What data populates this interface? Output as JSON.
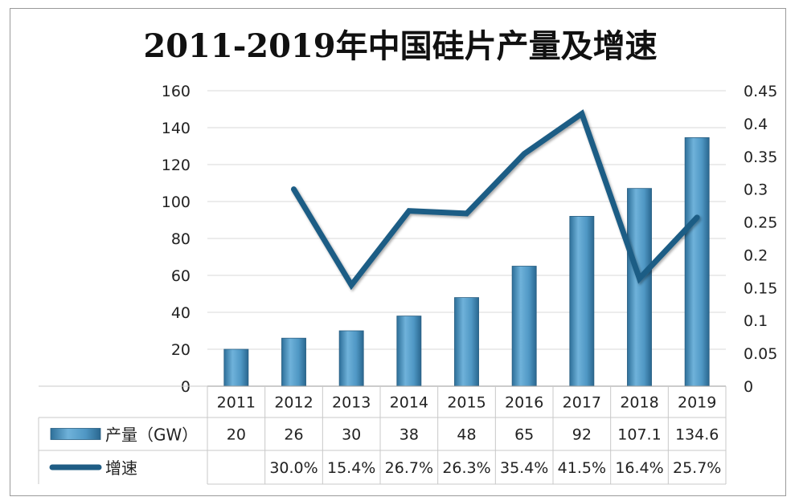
{
  "chart_data": {
    "type": "bar",
    "title": "2011-2019年中国硅片产量及增速",
    "categories": [
      "2011",
      "2012",
      "2013",
      "2014",
      "2015",
      "2016",
      "2017",
      "2018",
      "2019"
    ],
    "ylim": [
      0,
      160
    ],
    "y2lim": [
      0,
      0.45
    ],
    "y_ticks": [
      "0",
      "20",
      "40",
      "60",
      "80",
      "100",
      "120",
      "140",
      "160"
    ],
    "y2_ticks": [
      "0",
      "0.05",
      "0.1",
      "0.15",
      "0.2",
      "0.25",
      "0.3",
      "0.35",
      "0.4",
      "0.45"
    ],
    "grid": true,
    "legend": "data-table",
    "series": [
      {
        "name": "产量（GW）",
        "type": "bar",
        "axis": "left",
        "color": "#4f97c4",
        "values": [
          20,
          26,
          30,
          38,
          48,
          65,
          92,
          107.1,
          134.6
        ],
        "labels": [
          "20",
          "26",
          "30",
          "38",
          "48",
          "65",
          "92",
          "107.1",
          "134.6"
        ]
      },
      {
        "name": "增速",
        "type": "line",
        "axis": "right",
        "color": "#1f5d85",
        "values": [
          null,
          0.3,
          0.154,
          0.267,
          0.263,
          0.354,
          0.415,
          0.164,
          0.257
        ],
        "labels": [
          "",
          "30.0%",
          "15.4%",
          "26.7%",
          "26.3%",
          "35.4%",
          "41.5%",
          "16.4%",
          "25.7%"
        ]
      }
    ]
  }
}
